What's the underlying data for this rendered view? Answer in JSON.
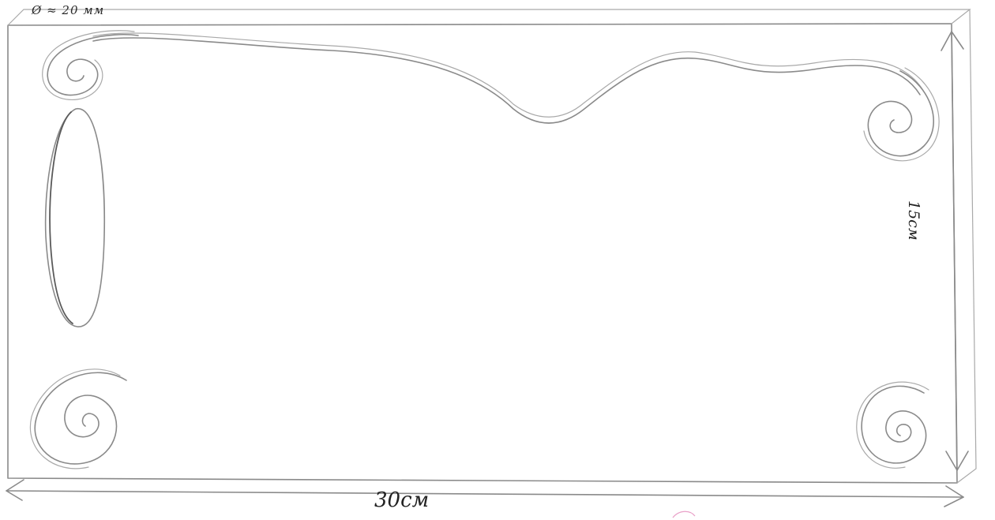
{
  "labels": {
    "thickness": "Ø ≈ 20 мм",
    "width": "30см",
    "height": "15см"
  },
  "colors": {
    "pencil": "#8a8a8a",
    "ink": "#222222",
    "paper": "#ffffff"
  }
}
